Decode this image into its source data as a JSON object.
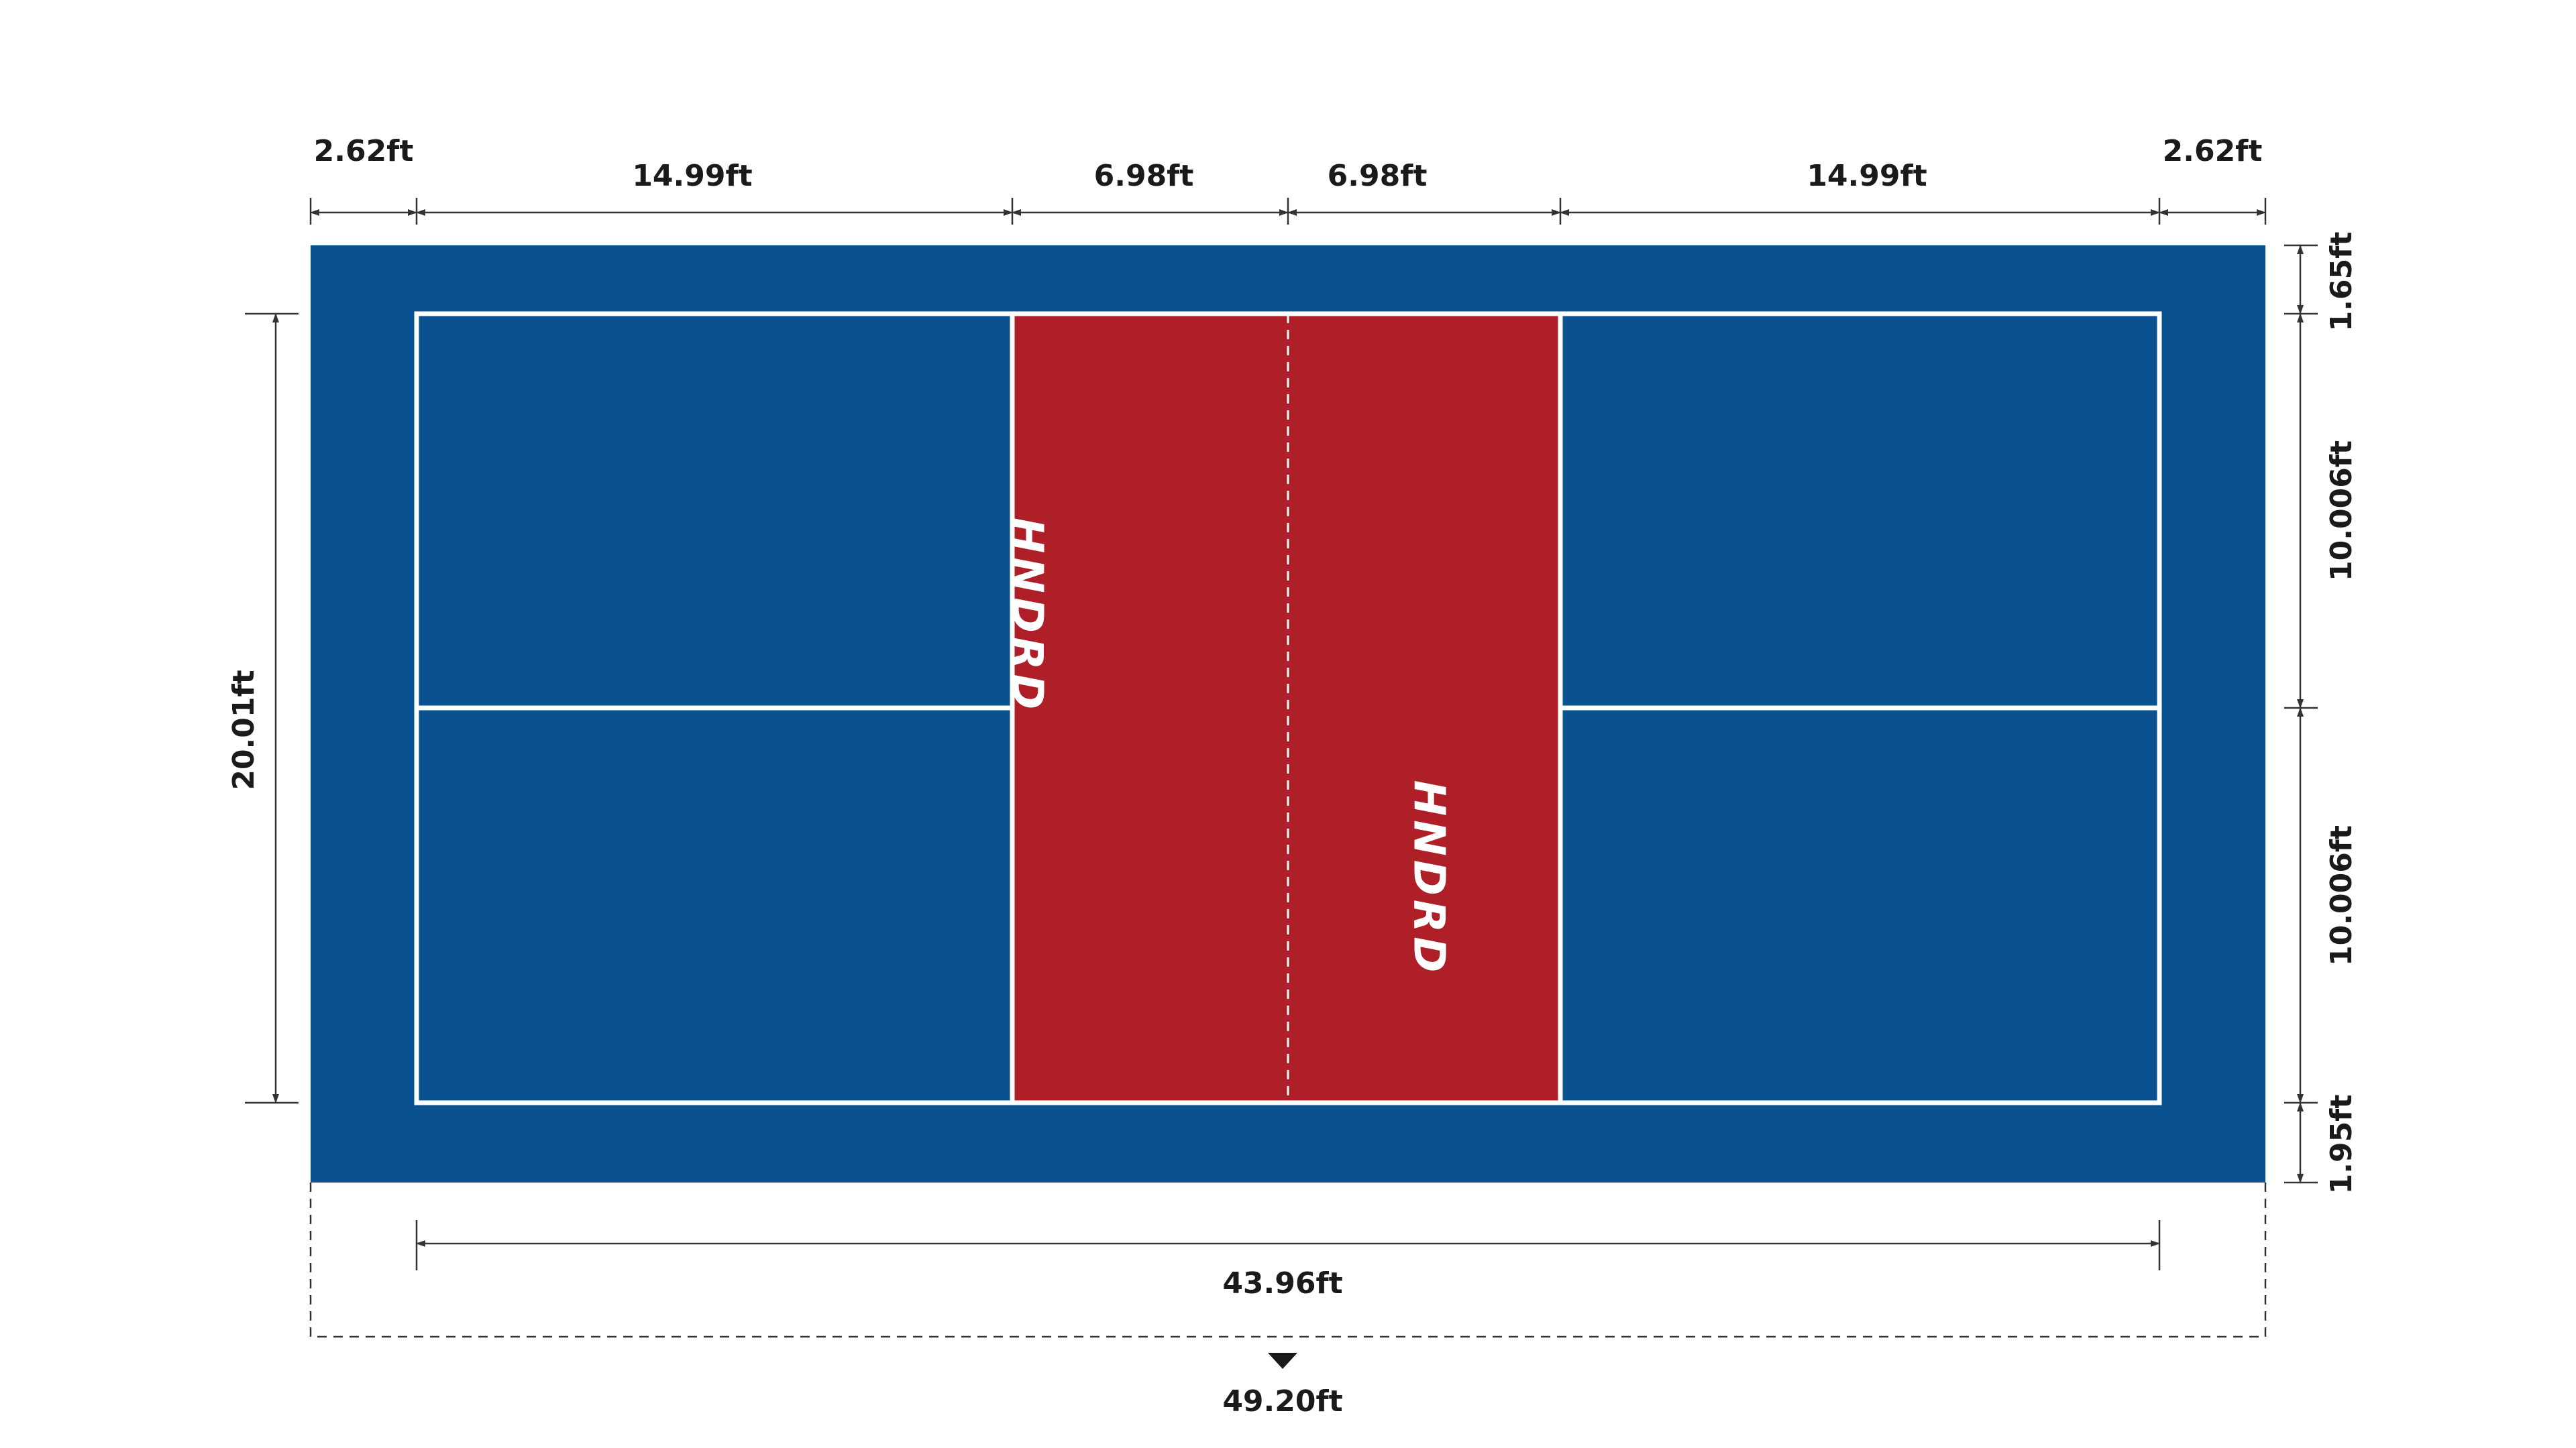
{
  "dimensions": {
    "top": [
      "2.62ft",
      "14.99ft",
      "6.98ft",
      "6.98ft",
      "14.99ft",
      "2.62ft"
    ],
    "left": "20.01ft",
    "right": [
      "1.65ft",
      "10.006ft",
      "10.006ft",
      "1.95ft"
    ],
    "bottom_inner": "43.96ft",
    "bottom_total": "49.20ft"
  },
  "logos": [
    "HNDRD",
    "HNDRD"
  ]
}
